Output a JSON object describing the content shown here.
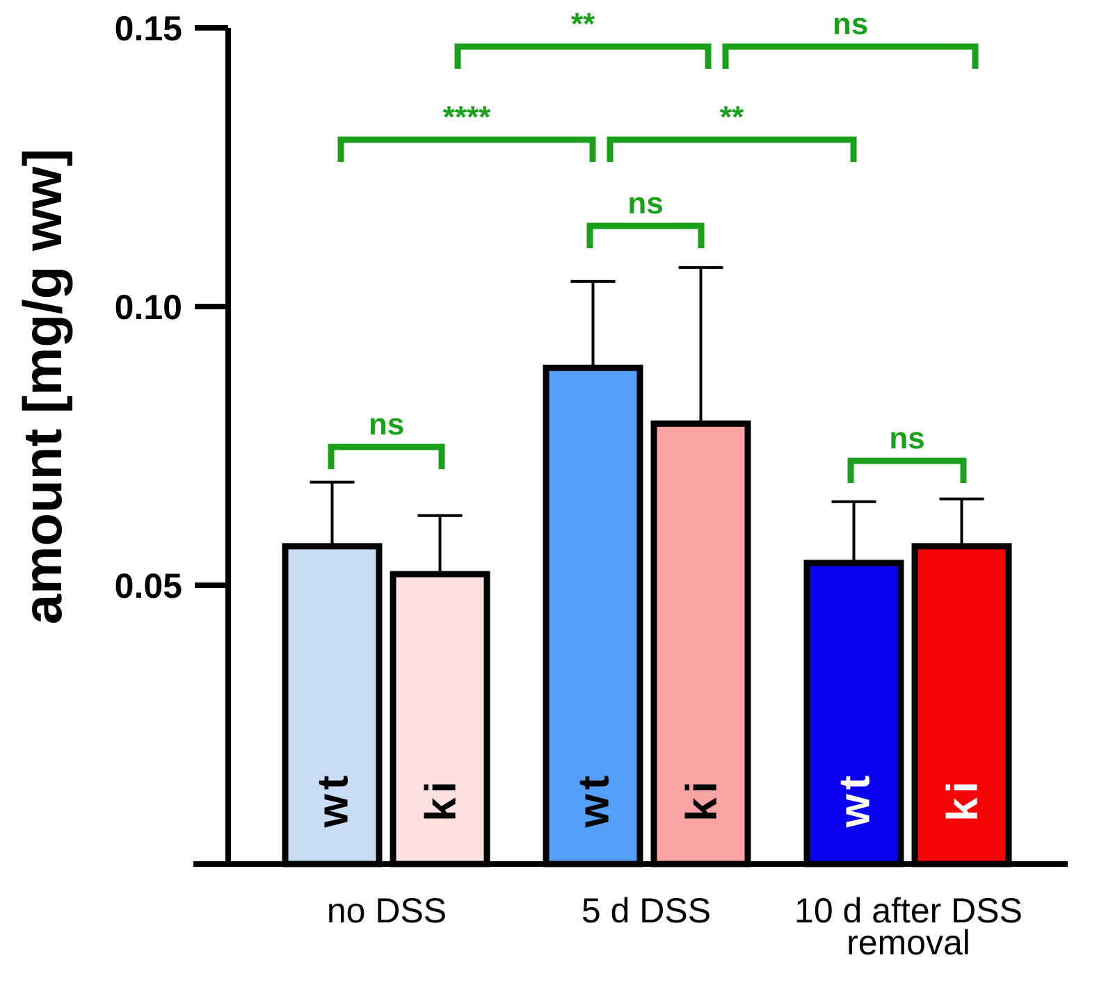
{
  "chart_data": {
    "type": "bar",
    "title": "",
    "xlabel": "",
    "ylabel": "amount [mg/g ww]",
    "ylim": [
      0.0,
      0.15
    ],
    "yticks": [
      "0.05",
      "0.10",
      "0.15"
    ],
    "ytick_values": [
      0.05,
      0.1,
      0.15
    ],
    "categories": [
      {
        "lines": [
          "no DSS"
        ]
      },
      {
        "lines": [
          "5 d DSS"
        ]
      },
      {
        "lines": [
          "10 d after DSS",
          "removal"
        ]
      }
    ],
    "bars": [
      {
        "group": 0,
        "label": "wt",
        "value": 0.057,
        "error": 0.0115,
        "fill": "#c9dcf5",
        "label_color": "#000000"
      },
      {
        "group": 0,
        "label": "ki",
        "value": 0.052,
        "error": 0.0105,
        "fill": "#fde0e0",
        "label_color": "#000000"
      },
      {
        "group": 1,
        "label": "wt",
        "value": 0.089,
        "error": 0.0155,
        "fill": "#569ff9",
        "label_color": "#000000"
      },
      {
        "group": 1,
        "label": "ki",
        "value": 0.079,
        "error": 0.028,
        "fill": "#f9a3a3",
        "label_color": "#000000"
      },
      {
        "group": 2,
        "label": "wt",
        "value": 0.054,
        "error": 0.011,
        "fill": "#0a00f0",
        "label_color": "#ffffff"
      },
      {
        "group": 2,
        "label": "ki",
        "value": 0.057,
        "error": 0.0085,
        "fill": "#f50505",
        "label_color": "#ffffff"
      }
    ],
    "significance": [
      {
        "from_bar": 0,
        "to_bar": 1,
        "label": "ns"
      },
      {
        "from_bar": 2,
        "to_bar": 3,
        "label": "ns"
      },
      {
        "from_bar": 4,
        "to_bar": 5,
        "label": "ns"
      },
      {
        "from_group": 0,
        "to_group": 1,
        "label": "****"
      },
      {
        "from_group": 1,
        "to_group": 2,
        "label": "**"
      },
      {
        "from_group_right": 0,
        "to_group_right": 1,
        "label": "**"
      },
      {
        "from_group_right": 1,
        "to_group_right": 2,
        "label": "ns"
      }
    ]
  },
  "colors": {
    "significance": "#1aa01a",
    "axis": "#000000"
  }
}
